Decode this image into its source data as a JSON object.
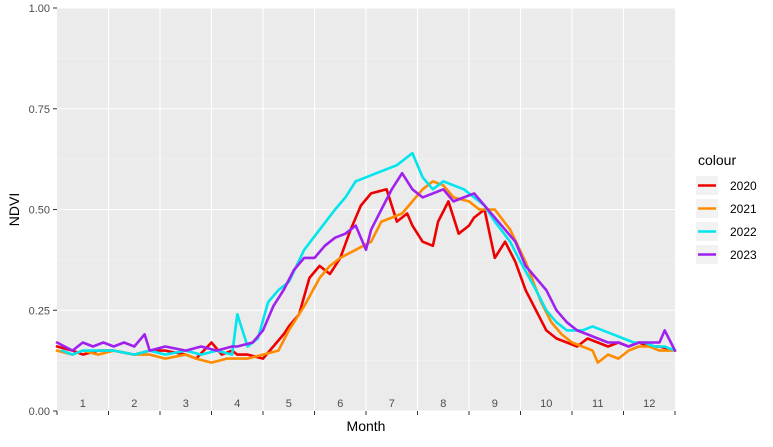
{
  "chart_data": {
    "type": "line",
    "xlabel": "Month",
    "ylabel": "NDVI",
    "ylim": [
      0,
      1
    ],
    "xlim": [
      0.5,
      12.5
    ],
    "y_ticks": [
      "0.00",
      "0.25",
      "0.50",
      "0.75",
      "1.00"
    ],
    "y_tick_values": [
      0,
      0.25,
      0.5,
      0.75,
      1.0
    ],
    "month_labels": [
      "1",
      "2",
      "3",
      "4",
      "5",
      "6",
      "7",
      "8",
      "9",
      "10",
      "11",
      "12"
    ],
    "grid": true,
    "legend_position": "right",
    "legend_title": "colour",
    "series": [
      {
        "name": "2020",
        "color": "#ee0000",
        "x": [
          0.5,
          0.8,
          1.0,
          1.3,
          1.6,
          2.0,
          2.3,
          2.6,
          3.0,
          3.2,
          3.5,
          3.7,
          3.9,
          4.0,
          4.2,
          4.5,
          4.7,
          4.9,
          5.0,
          5.2,
          5.4,
          5.6,
          5.8,
          6.0,
          6.2,
          6.4,
          6.6,
          6.9,
          7.1,
          7.3,
          7.4,
          7.6,
          7.8,
          7.9,
          8.1,
          8.3,
          8.5,
          8.6,
          8.8,
          9.0,
          9.2,
          9.4,
          9.6,
          9.8,
          10.0,
          10.2,
          10.4,
          10.6,
          10.8,
          11.0,
          11.2,
          11.4,
          11.6,
          11.8,
          12.0,
          12.2,
          12.5
        ],
        "y": [
          0.16,
          0.15,
          0.14,
          0.15,
          0.15,
          0.14,
          0.15,
          0.15,
          0.14,
          0.13,
          0.17,
          0.14,
          0.15,
          0.14,
          0.14,
          0.13,
          0.16,
          0.19,
          0.21,
          0.24,
          0.33,
          0.36,
          0.34,
          0.38,
          0.45,
          0.51,
          0.54,
          0.55,
          0.47,
          0.49,
          0.46,
          0.42,
          0.41,
          0.47,
          0.52,
          0.44,
          0.46,
          0.48,
          0.5,
          0.38,
          0.42,
          0.37,
          0.3,
          0.25,
          0.2,
          0.18,
          0.17,
          0.16,
          0.18,
          0.17,
          0.16,
          0.17,
          0.16,
          0.17,
          0.16,
          0.16,
          0.15
        ]
      },
      {
        "name": "2021",
        "color": "#ff8c00",
        "x": [
          0.5,
          0.8,
          1.0,
          1.3,
          1.6,
          2.0,
          2.3,
          2.6,
          3.0,
          3.2,
          3.5,
          3.8,
          4.0,
          4.2,
          4.5,
          4.8,
          5.0,
          5.3,
          5.6,
          5.8,
          6.0,
          6.3,
          6.6,
          6.8,
          7.0,
          7.2,
          7.4,
          7.6,
          7.8,
          8.0,
          8.2,
          8.5,
          8.7,
          9.0,
          9.3,
          9.6,
          9.9,
          10.1,
          10.3,
          10.5,
          10.7,
          10.9,
          11.0,
          11.2,
          11.4,
          11.6,
          11.8,
          12.0,
          12.2,
          12.5
        ],
        "y": [
          0.15,
          0.14,
          0.15,
          0.14,
          0.15,
          0.14,
          0.14,
          0.13,
          0.14,
          0.13,
          0.12,
          0.13,
          0.13,
          0.13,
          0.14,
          0.15,
          0.2,
          0.26,
          0.33,
          0.36,
          0.38,
          0.4,
          0.42,
          0.47,
          0.48,
          0.49,
          0.52,
          0.55,
          0.57,
          0.56,
          0.53,
          0.52,
          0.5,
          0.5,
          0.45,
          0.37,
          0.27,
          0.22,
          0.19,
          0.17,
          0.16,
          0.15,
          0.12,
          0.14,
          0.13,
          0.15,
          0.16,
          0.16,
          0.15,
          0.15
        ]
      },
      {
        "name": "2022",
        "color": "#00e5ee",
        "x": [
          0.6,
          0.8,
          1.0,
          1.3,
          1.6,
          2.0,
          2.3,
          2.6,
          3.0,
          3.3,
          3.6,
          3.9,
          4.0,
          4.2,
          4.4,
          4.6,
          4.8,
          5.0,
          5.3,
          5.6,
          5.9,
          6.1,
          6.3,
          6.5,
          6.7,
          6.9,
          7.1,
          7.4,
          7.6,
          7.8,
          8.0,
          8.2,
          8.4,
          8.6,
          8.8,
          9.0,
          9.3,
          9.5,
          9.8,
          10.0,
          10.2,
          10.4,
          10.7,
          10.9,
          11.1,
          11.3,
          11.5,
          11.7,
          11.9,
          12.1,
          12.3,
          12.5
        ],
        "y": [
          0.15,
          0.14,
          0.15,
          0.15,
          0.15,
          0.14,
          0.15,
          0.14,
          0.15,
          0.14,
          0.15,
          0.14,
          0.24,
          0.16,
          0.18,
          0.27,
          0.3,
          0.32,
          0.4,
          0.45,
          0.5,
          0.53,
          0.57,
          0.58,
          0.59,
          0.6,
          0.61,
          0.64,
          0.58,
          0.55,
          0.57,
          0.56,
          0.55,
          0.53,
          0.51,
          0.47,
          0.42,
          0.37,
          0.3,
          0.25,
          0.22,
          0.2,
          0.2,
          0.21,
          0.2,
          0.19,
          0.18,
          0.17,
          0.17,
          0.16,
          0.16,
          0.15
        ]
      },
      {
        "name": "2023",
        "color": "#a020f0",
        "x": [
          0.5,
          0.8,
          1.0,
          1.2,
          1.4,
          1.6,
          1.8,
          2.0,
          2.2,
          2.3,
          2.6,
          3.0,
          3.3,
          3.6,
          3.9,
          4.0,
          4.3,
          4.5,
          4.7,
          4.9,
          5.1,
          5.3,
          5.5,
          5.7,
          5.9,
          6.1,
          6.3,
          6.5,
          6.6,
          6.8,
          7.0,
          7.2,
          7.4,
          7.6,
          7.8,
          8.0,
          8.2,
          8.4,
          8.6,
          8.8,
          9.0,
          9.2,
          9.4,
          9.6,
          9.8,
          10.0,
          10.2,
          10.4,
          10.6,
          10.8,
          11.0,
          11.2,
          11.4,
          11.6,
          11.8,
          12.0,
          12.2,
          12.3,
          12.5
        ],
        "y": [
          0.17,
          0.15,
          0.17,
          0.16,
          0.17,
          0.16,
          0.17,
          0.16,
          0.19,
          0.15,
          0.16,
          0.15,
          0.16,
          0.15,
          0.16,
          0.16,
          0.17,
          0.2,
          0.26,
          0.3,
          0.35,
          0.38,
          0.38,
          0.41,
          0.43,
          0.44,
          0.46,
          0.4,
          0.45,
          0.5,
          0.55,
          0.59,
          0.55,
          0.53,
          0.54,
          0.55,
          0.52,
          0.53,
          0.54,
          0.51,
          0.48,
          0.45,
          0.42,
          0.36,
          0.33,
          0.3,
          0.25,
          0.22,
          0.2,
          0.19,
          0.18,
          0.17,
          0.17,
          0.16,
          0.17,
          0.17,
          0.17,
          0.2,
          0.15
        ]
      }
    ]
  }
}
